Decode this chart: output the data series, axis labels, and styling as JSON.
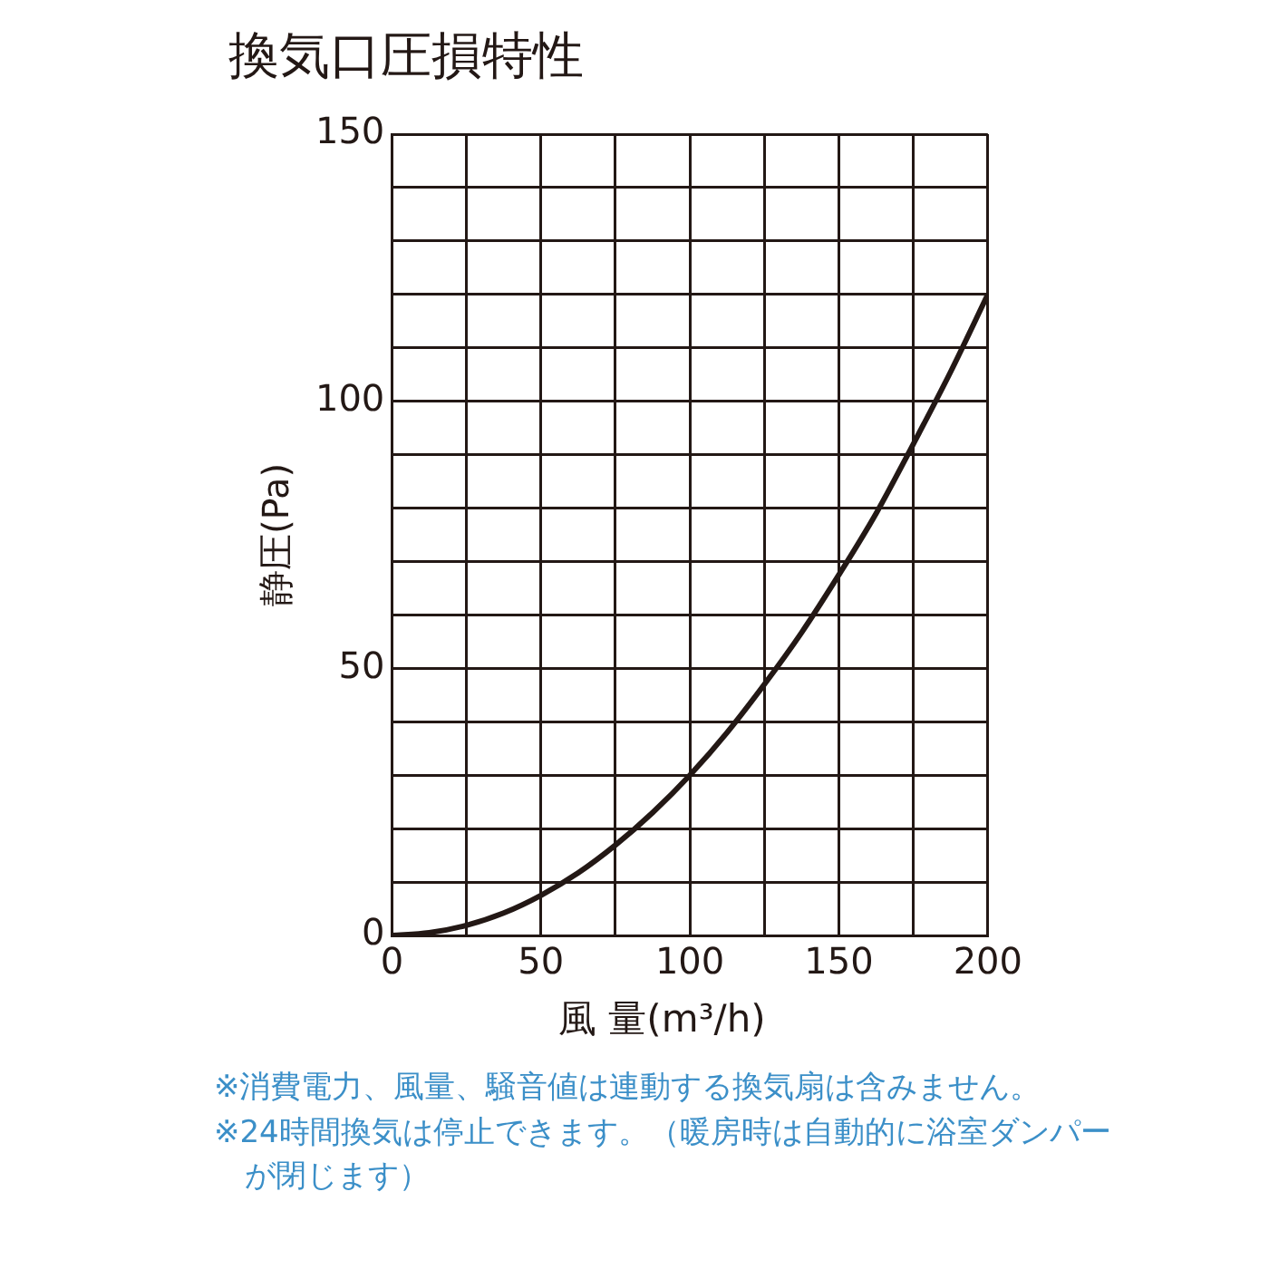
{
  "chart_data": {
    "type": "line",
    "title": "換気口圧損特性",
    "xlabel": "風 量(m³/h)",
    "ylabel": "静圧(Pa)",
    "x": [
      0,
      12.5,
      25,
      37.5,
      50,
      62.5,
      75,
      87.5,
      100,
      112.5,
      125,
      137.5,
      150,
      162.5,
      175,
      187.5,
      200
    ],
    "series": [
      {
        "color": "#231815",
        "values": [
          0,
          0.5,
          1.9,
          4.2,
          7.5,
          11.7,
          16.9,
          23,
          30,
          38,
          47,
          56.7,
          67.5,
          79,
          92,
          105.5,
          120
        ]
      }
    ],
    "xlim": [
      0,
      200
    ],
    "xticks": [
      0,
      {
        "value": 25,
        "label": null
      },
      50,
      {
        "value": 75,
        "label": null
      },
      100,
      {
        "value": 125,
        "label": null
      },
      150,
      {
        "value": 175,
        "label": null
      },
      200
    ],
    "ylim": [
      0,
      150
    ],
    "yticks": [
      0,
      {
        "value": 10,
        "label": null
      },
      {
        "value": 20,
        "label": null
      },
      {
        "value": 30,
        "label": null
      },
      {
        "value": 40,
        "label": null
      },
      50,
      {
        "value": 60,
        "label": null
      },
      {
        "value": 70,
        "label": null
      },
      {
        "value": 80,
        "label": null
      },
      {
        "value": 90,
        "label": null
      },
      100,
      {
        "value": 110,
        "label": null
      },
      {
        "value": 120,
        "label": null
      },
      {
        "value": 130,
        "label": null
      },
      {
        "value": 140,
        "label": null
      },
      150
    ],
    "grid": true,
    "marker": "none",
    "line_style": "solid",
    "legend": false,
    "annotations": [
      "※消費電力、風量、騒音値は連動する換気扇は含みません。",
      "※24時間換気は停止できます。（暖房時は自動的に浴室ダンパーが閉じます）"
    ]
  }
}
